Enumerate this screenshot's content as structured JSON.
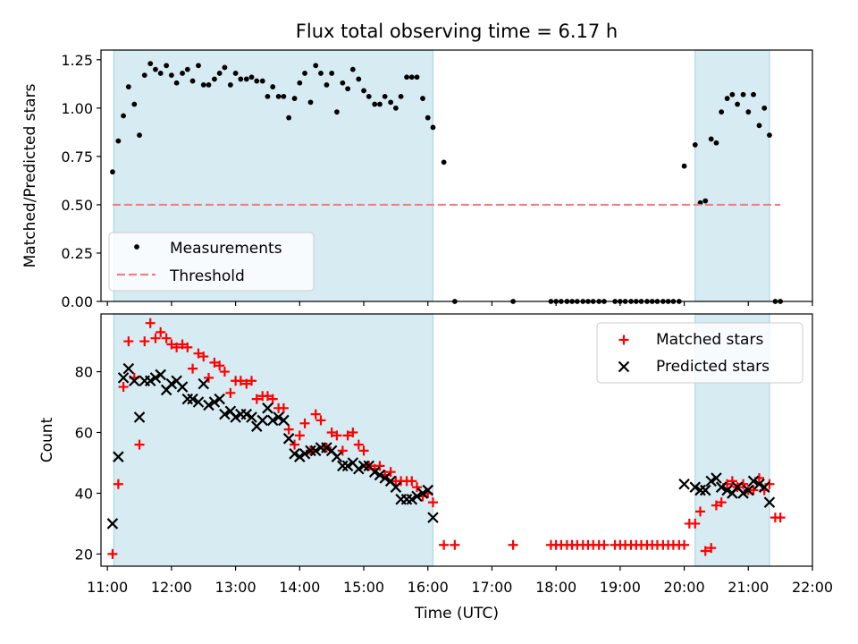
{
  "title": "Flux total observing time = 6.17 h",
  "xlabel": "Time (UTC)",
  "colors": {
    "shade": "#add8e6",
    "measurement": "#000000",
    "threshold": "#f08080",
    "matched": "#ff0000",
    "predicted": "#000000"
  },
  "chart_data": [
    {
      "type": "scatter",
      "ylabel": "Matched/Predicted stars",
      "xlim": [
        10.9,
        22.0
      ],
      "ylim": [
        0,
        1.3
      ],
      "yticks": [
        0,
        0.25,
        0.5,
        0.75,
        1.0,
        1.25
      ],
      "ytick_labels": [
        "0.00",
        "0.25",
        "0.50",
        "0.75",
        "1.00",
        "1.25"
      ],
      "xticks": [
        11,
        12,
        13,
        14,
        15,
        16,
        17,
        18,
        19,
        20,
        21,
        22
      ],
      "xtick_labels": [
        "11:00",
        "12:00",
        "13:00",
        "14:00",
        "15:00",
        "16:00",
        "17:00",
        "18:00",
        "19:00",
        "20:00",
        "21:00",
        "22:00"
      ],
      "shaded_intervals": [
        [
          11.1,
          16.08
        ],
        [
          20.17,
          21.33
        ]
      ],
      "legend": {
        "position": "lower-left",
        "entries": [
          "Measurements",
          "Threshold"
        ]
      },
      "series": [
        {
          "name": "Measurements",
          "marker": "dot",
          "x": [
            11.08,
            11.17,
            11.25,
            11.33,
            11.42,
            11.5,
            11.58,
            11.67,
            11.75,
            11.83,
            11.92,
            12.0,
            12.08,
            12.17,
            12.25,
            12.33,
            12.42,
            12.5,
            12.58,
            12.67,
            12.75,
            12.83,
            12.92,
            13.0,
            13.08,
            13.17,
            13.25,
            13.33,
            13.42,
            13.5,
            13.58,
            13.67,
            13.75,
            13.83,
            13.92,
            14.0,
            14.08,
            14.17,
            14.25,
            14.33,
            14.42,
            14.5,
            14.58,
            14.67,
            14.75,
            14.83,
            14.92,
            15.0,
            15.08,
            15.17,
            15.25,
            15.33,
            15.42,
            15.5,
            15.58,
            15.67,
            15.75,
            15.83,
            15.92,
            16.0,
            16.08,
            16.25,
            16.42,
            17.33,
            17.92,
            18.0,
            18.08,
            18.17,
            18.25,
            18.33,
            18.42,
            18.5,
            18.58,
            18.67,
            18.75,
            18.92,
            19.0,
            19.08,
            19.17,
            19.25,
            19.33,
            19.42,
            19.5,
            19.58,
            19.67,
            19.75,
            19.83,
            19.92,
            20.0,
            20.17,
            20.25,
            20.33,
            20.42,
            20.5,
            20.58,
            20.67,
            20.75,
            20.83,
            20.92,
            21.0,
            21.08,
            21.17,
            21.25,
            21.33,
            21.42,
            21.5
          ],
          "y": [
            0.67,
            0.83,
            0.96,
            1.11,
            1.02,
            0.86,
            1.17,
            1.23,
            1.2,
            1.18,
            1.22,
            1.17,
            1.13,
            1.18,
            1.2,
            1.14,
            1.22,
            1.12,
            1.12,
            1.15,
            1.18,
            1.21,
            1.12,
            1.18,
            1.15,
            1.15,
            1.16,
            1.14,
            1.14,
            1.06,
            1.11,
            1.06,
            1.06,
            0.95,
            1.05,
            1.13,
            1.18,
            1.03,
            1.22,
            1.18,
            1.12,
            1.18,
            0.98,
            1.13,
            1.1,
            1.2,
            1.15,
            1.09,
            1.06,
            1.02,
            1.02,
            1.06,
            1.03,
            1.0,
            1.06,
            1.16,
            1.16,
            1.16,
            1.05,
            0.95,
            0.9,
            0.72,
            0.0,
            0.0,
            0.0,
            0.0,
            0.0,
            0.0,
            0.0,
            0.0,
            0.0,
            0.0,
            0.0,
            0.0,
            0.0,
            0.0,
            0.0,
            0.0,
            0.0,
            0.0,
            0.0,
            0.0,
            0.0,
            0.0,
            0.0,
            0.0,
            0.0,
            0.0,
            0.7,
            0.81,
            0.51,
            0.52,
            0.84,
            0.82,
            0.98,
            1.05,
            1.07,
            1.02,
            1.07,
            0.98,
            1.07,
            0.91,
            1.0,
            0.86,
            0.0,
            0.0
          ]
        },
        {
          "name": "Threshold",
          "marker": "dashed-line",
          "x": [
            11.08,
            21.5
          ],
          "y": [
            0.5,
            0.5
          ]
        }
      ]
    },
    {
      "type": "scatter",
      "ylabel": "Count",
      "xlim": [
        10.9,
        22.0
      ],
      "ylim": [
        16,
        99
      ],
      "yticks": [
        20,
        40,
        60,
        80
      ],
      "ytick_labels": [
        "20",
        "40",
        "60",
        "80"
      ],
      "xticks": [
        11,
        12,
        13,
        14,
        15,
        16,
        17,
        18,
        19,
        20,
        21,
        22
      ],
      "xtick_labels": [
        "11:00",
        "12:00",
        "13:00",
        "14:00",
        "15:00",
        "16:00",
        "17:00",
        "18:00",
        "19:00",
        "20:00",
        "21:00",
        "22:00"
      ],
      "shaded_intervals": [
        [
          11.1,
          16.08
        ],
        [
          20.17,
          21.33
        ]
      ],
      "legend": {
        "position": "upper-right",
        "entries": [
          "Matched stars",
          "Predicted stars"
        ]
      },
      "series": [
        {
          "name": "Matched stars",
          "marker": "plus",
          "x": [
            11.08,
            11.17,
            11.25,
            11.33,
            11.42,
            11.5,
            11.58,
            11.67,
            11.75,
            11.83,
            11.92,
            12.0,
            12.08,
            12.17,
            12.25,
            12.33,
            12.42,
            12.5,
            12.58,
            12.67,
            12.75,
            12.83,
            12.92,
            13.0,
            13.08,
            13.17,
            13.25,
            13.33,
            13.42,
            13.5,
            13.58,
            13.67,
            13.75,
            13.83,
            13.92,
            14.0,
            14.08,
            14.17,
            14.25,
            14.33,
            14.42,
            14.5,
            14.58,
            14.67,
            14.75,
            14.83,
            14.92,
            15.0,
            15.08,
            15.17,
            15.25,
            15.33,
            15.42,
            15.5,
            15.58,
            15.67,
            15.75,
            15.83,
            15.92,
            16.0,
            16.08,
            16.25,
            16.42,
            17.33,
            17.92,
            18.0,
            18.08,
            18.17,
            18.25,
            18.33,
            18.42,
            18.5,
            18.58,
            18.67,
            18.75,
            18.92,
            19.0,
            19.08,
            19.17,
            19.25,
            19.33,
            19.42,
            19.5,
            19.58,
            19.67,
            19.75,
            19.83,
            19.92,
            20.0,
            20.08,
            20.17,
            20.25,
            20.33,
            20.42,
            20.5,
            20.58,
            20.67,
            20.75,
            20.83,
            20.92,
            21.0,
            21.08,
            21.17,
            21.25,
            21.33,
            21.42,
            21.5
          ],
          "y": [
            20,
            43,
            75,
            90,
            78,
            56,
            90,
            96,
            91,
            93,
            91,
            89,
            88,
            89,
            88,
            81,
            86,
            85,
            78,
            83,
            82,
            80,
            73,
            77,
            77,
            76,
            77,
            71,
            72,
            72,
            71,
            68,
            68,
            61,
            56,
            59,
            63,
            54,
            66,
            64,
            55,
            60,
            59,
            54,
            59,
            60,
            56,
            54,
            49,
            48,
            49,
            46,
            47,
            44,
            44,
            44,
            44,
            42,
            39,
            40,
            37,
            23,
            23,
            23,
            23,
            23,
            23,
            23,
            23,
            23,
            23,
            23,
            23,
            23,
            23,
            23,
            23,
            23,
            23,
            23,
            23,
            23,
            23,
            23,
            23,
            23,
            23,
            23,
            23,
            30,
            30,
            34,
            21,
            22,
            36,
            37,
            43,
            44,
            42,
            43,
            41,
            41,
            45,
            41,
            43,
            32,
            32
          ]
        },
        {
          "name": "Predicted stars",
          "marker": "x",
          "x": [
            11.08,
            11.17,
            11.25,
            11.33,
            11.42,
            11.5,
            11.58,
            11.67,
            11.75,
            11.83,
            11.92,
            12.0,
            12.08,
            12.17,
            12.25,
            12.33,
            12.42,
            12.5,
            12.58,
            12.67,
            12.75,
            12.83,
            12.92,
            13.0,
            13.08,
            13.17,
            13.25,
            13.33,
            13.42,
            13.5,
            13.58,
            13.67,
            13.75,
            13.83,
            13.92,
            14.0,
            14.08,
            14.17,
            14.25,
            14.33,
            14.42,
            14.5,
            14.58,
            14.67,
            14.75,
            14.83,
            14.92,
            15.0,
            15.08,
            15.17,
            15.25,
            15.33,
            15.42,
            15.5,
            15.58,
            15.67,
            15.75,
            15.83,
            15.92,
            16.0,
            16.08,
            20.0,
            20.17,
            20.25,
            20.33,
            20.42,
            20.5,
            20.58,
            20.67,
            20.75,
            20.83,
            20.92,
            21.0,
            21.08,
            21.17,
            21.25,
            21.33
          ],
          "y": [
            30,
            52,
            78,
            81,
            77,
            65,
            77,
            77,
            78,
            79,
            74,
            76,
            77,
            75,
            71,
            71,
            70,
            76,
            69,
            70,
            71,
            66,
            67,
            65,
            66,
            66,
            65,
            62,
            64,
            68,
            64,
            65,
            64,
            58,
            53,
            52,
            53,
            54,
            54,
            55,
            55,
            54,
            52,
            49,
            49,
            50,
            48,
            49,
            49,
            47,
            46,
            45,
            44,
            42,
            38,
            38,
            38,
            39,
            40,
            41,
            32,
            43,
            42,
            41,
            41,
            44,
            45,
            42,
            41,
            40,
            42,
            40,
            41,
            44,
            43,
            42,
            37
          ]
        }
      ]
    }
  ]
}
